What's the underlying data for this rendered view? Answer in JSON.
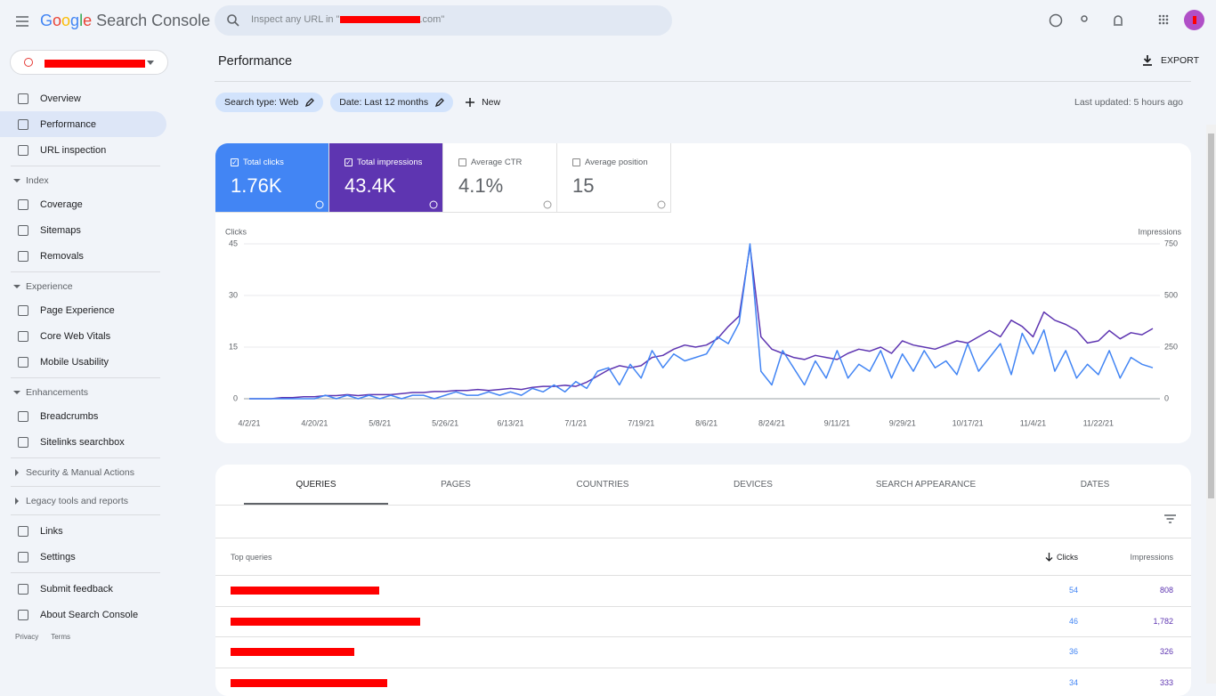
{
  "header": {
    "logo": "Google",
    "product": "Search Console",
    "search_prefix": "Inspect any URL in \"",
    "search_suffix": ".com\""
  },
  "nav": [
    {
      "items": [
        "Overview",
        "Performance",
        "URL inspection"
      ]
    },
    {
      "title": "Index",
      "items": [
        "Coverage",
        "Sitemaps",
        "Removals"
      ]
    },
    {
      "title": "Experience",
      "items": [
        "Page Experience",
        "Core Web Vitals",
        "Mobile Usability"
      ]
    },
    {
      "title": "Enhancements",
      "items": [
        "Breadcrumbs",
        "Sitelinks searchbox"
      ]
    },
    {
      "title": "Security & Manual Actions",
      "collapsed": true
    },
    {
      "title": "Legacy tools and reports",
      "collapsed": true
    },
    {
      "items": [
        "Links",
        "Settings"
      ]
    },
    {
      "items": [
        "Submit feedback",
        "About Search Console"
      ]
    }
  ],
  "footer_links": [
    "Privacy",
    "Terms"
  ],
  "page": {
    "title": "Performance",
    "export": "EXPORT",
    "filters": [
      "Search type: Web",
      "Date: Last 12 months"
    ],
    "new": "New",
    "last_updated": "Last updated: 5 hours ago"
  },
  "metrics": [
    {
      "label": "Total clicks",
      "value": "1.76K",
      "checked": true,
      "color": "#4285f4"
    },
    {
      "label": "Total impressions",
      "value": "43.4K",
      "checked": true,
      "color": "#5e35b1"
    },
    {
      "label": "Average CTR",
      "value": "4.1%",
      "checked": false
    },
    {
      "label": "Average position",
      "value": "15",
      "checked": false
    }
  ],
  "chart_data": {
    "type": "line",
    "y_label": "Clicks",
    "y2_label": "Impressions",
    "categories": [
      "4/2/21",
      null,
      null,
      null,
      null,
      null,
      "4/20/21",
      null,
      null,
      null,
      null,
      null,
      "5/8/21",
      null,
      null,
      null,
      null,
      null,
      "5/26/21",
      null,
      null,
      null,
      null,
      null,
      "6/13/21",
      null,
      null,
      null,
      null,
      null,
      "7/1/21",
      null,
      null,
      null,
      null,
      null,
      "7/19/21",
      null,
      null,
      null,
      null,
      null,
      "8/6/21",
      null,
      null,
      null,
      null,
      null,
      "8/24/21",
      null,
      null,
      null,
      null,
      null,
      "9/11/21",
      null,
      null,
      null,
      null,
      null,
      "9/29/21",
      null,
      null,
      null,
      null,
      null,
      "10/17/21",
      null,
      null,
      null,
      null,
      null,
      "11/4/21",
      null,
      null,
      null,
      null,
      null,
      "11/22/21",
      null,
      null,
      null,
      null,
      null
    ],
    "series": [
      {
        "name": "Clicks",
        "color": "#4285f4",
        "values": [
          0,
          0,
          0,
          0,
          0,
          0,
          0,
          1,
          0,
          1,
          0,
          1,
          0,
          1,
          0,
          1,
          1,
          0,
          1,
          2,
          1,
          1,
          2,
          1,
          2,
          1,
          3,
          2,
          4,
          2,
          5,
          3,
          8,
          9,
          4,
          10,
          6,
          14,
          9,
          13,
          11,
          12,
          13,
          18,
          16,
          22,
          45,
          8,
          4,
          14,
          9,
          4,
          11,
          6,
          14,
          6,
          10,
          8,
          14,
          6,
          13,
          8,
          14,
          9,
          11,
          7,
          16,
          8,
          12,
          16,
          7,
          19,
          13,
          20,
          8,
          14,
          6,
          10,
          7,
          14,
          6,
          12,
          10,
          9
        ]
      },
      {
        "name": "Impressions",
        "color": "#5e35b1",
        "axis": "y2",
        "values": [
          0,
          0,
          0,
          5,
          5,
          10,
          10,
          15,
          15,
          20,
          15,
          20,
          20,
          20,
          25,
          30,
          30,
          35,
          35,
          40,
          40,
          45,
          40,
          45,
          50,
          45,
          55,
          60,
          60,
          65,
          60,
          80,
          110,
          140,
          160,
          150,
          160,
          200,
          210,
          240,
          260,
          250,
          260,
          290,
          350,
          400,
          740,
          300,
          240,
          220,
          200,
          190,
          210,
          200,
          190,
          220,
          240,
          230,
          250,
          220,
          280,
          260,
          250,
          240,
          260,
          280,
          270,
          300,
          330,
          300,
          380,
          350,
          300,
          420,
          380,
          360,
          330,
          270,
          280,
          330,
          290,
          320,
          310,
          340
        ]
      }
    ],
    "ylim": [
      0,
      45
    ],
    "yticks": [
      0,
      15,
      30,
      45
    ],
    "y2lim": [
      0,
      750
    ],
    "y2ticks": [
      0,
      250,
      500,
      750
    ],
    "grid": true
  },
  "tabs": [
    "QUERIES",
    "PAGES",
    "COUNTRIES",
    "DEVICES",
    "SEARCH APPEARANCE",
    "DATES"
  ],
  "table": {
    "headers": [
      "Top queries",
      "Clicks",
      "Impressions"
    ],
    "rows": [
      [
        54,
        "808"
      ],
      [
        46,
        "1,782"
      ],
      [
        36,
        "326"
      ],
      [
        34,
        "333"
      ]
    ]
  }
}
